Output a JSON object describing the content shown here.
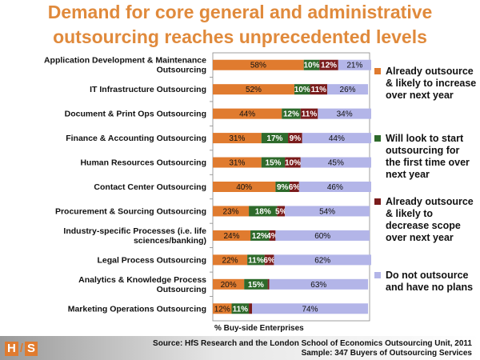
{
  "title_lines": [
    "Demand for core general and administrative",
    "outsourcing reaches unprecedented levels"
  ],
  "chart_data": {
    "type": "bar",
    "orientation": "horizontal",
    "stacked": true,
    "xlabel": "% Buy-side Enterprises",
    "xlim": [
      0,
      100
    ],
    "categories": [
      "Application Development & Maintenance Outsourcing",
      "IT Infrastructure Outsourcing",
      "Document & Print Ops Outsourcing",
      "Finance & Accounting Outsourcing",
      "Human Resources Outsourcing",
      "Contact Center Outsourcing",
      "Procurement & Sourcing Outsourcing",
      "Industry-specific Processes (i.e. life sciences/banking)",
      "Legal Process Outsourcing",
      "Analytics & Knowledge Process Outsourcing",
      "Marketing Operations Outsourcing"
    ],
    "category_lines": [
      [
        "Application Development & Maintenance",
        "Outsourcing"
      ],
      [
        "IT Infrastructure Outsourcing"
      ],
      [
        "Document & Print Ops Outsourcing"
      ],
      [
        "Finance & Accounting Outsourcing"
      ],
      [
        "Human Resources Outsourcing"
      ],
      [
        "Contact Center Outsourcing"
      ],
      [
        "Procurement & Sourcing Outsourcing"
      ],
      [
        "Industry-specific Processes (i.e. life",
        "sciences/banking)"
      ],
      [
        "Legal Process Outsourcing"
      ],
      [
        "Analytics & Knowledge Process",
        "Outsourcing"
      ],
      [
        "Marketing Operations Outsourcing"
      ]
    ],
    "series": [
      {
        "name": "Already outsource & likely to increase over next year",
        "color": "#e07b2f",
        "label_color": "#111111",
        "values": [
          58,
          52,
          44,
          31,
          31,
          40,
          23,
          24,
          22,
          20,
          12
        ]
      },
      {
        "name": "Will look to start outsourcing for the first time over next year",
        "color": "#2e6a2b",
        "label_color": "#ffffff",
        "values": [
          10,
          10,
          12,
          17,
          15,
          9,
          18,
          12,
          11,
          15,
          11
        ]
      },
      {
        "name": "Already outsource & likely to decrease scope over next year",
        "color": "#7a1c1c",
        "label_color": "#ffffff",
        "values": [
          12,
          11,
          11,
          9,
          10,
          6,
          5,
          4,
          6,
          1,
          2
        ]
      },
      {
        "name": "Do not outsource and have no plans",
        "color": "#b3b5e8",
        "label_color": "#111111",
        "values": [
          21,
          26,
          34,
          44,
          45,
          46,
          54,
          60,
          62,
          63,
          74
        ]
      }
    ],
    "data_labels": [
      [
        "58%",
        "10%",
        "12%",
        "21%"
      ],
      [
        "52%",
        "10%",
        "11%",
        "26%"
      ],
      [
        "44%",
        "12%",
        "11%",
        "34%"
      ],
      [
        "31%",
        "17%",
        "9%",
        "44%"
      ],
      [
        "31%",
        "15%",
        "10%",
        "45%"
      ],
      [
        "40%",
        "9%",
        "6%",
        "46%"
      ],
      [
        "23%",
        "18%",
        "5%",
        "54%"
      ],
      [
        "24%",
        "12%",
        "4%",
        "60%"
      ],
      [
        "22%",
        "11%",
        "6%",
        "62%"
      ],
      [
        "20%",
        "15%",
        "",
        "63%"
      ],
      [
        "12%",
        "11%",
        "",
        "74%"
      ]
    ],
    "legend": [
      {
        "lines": [
          "Already outsource",
          "& likely to increase",
          "over next year"
        ],
        "color": "#e07b2f"
      },
      {
        "lines": [
          "Will look to start",
          "outsourcing for",
          "the first time over",
          "next year"
        ],
        "color": "#2e6a2b"
      },
      {
        "lines": [
          "Already outsource",
          "& likely to",
          "decrease scope",
          "over next year"
        ],
        "color": "#7a1c1c"
      },
      {
        "lines": [
          "Do not outsource",
          "and have no plans"
        ],
        "color": "#b3b5e8"
      }
    ]
  },
  "logo": {
    "left": "H",
    "sep": "/",
    "right": "S"
  },
  "source": {
    "line1": "Source:  HfS Research and the London School of Economics Outsourcing Unit, 2011",
    "line2": "Sample: 347 Buyers of Outsourcing Services"
  }
}
